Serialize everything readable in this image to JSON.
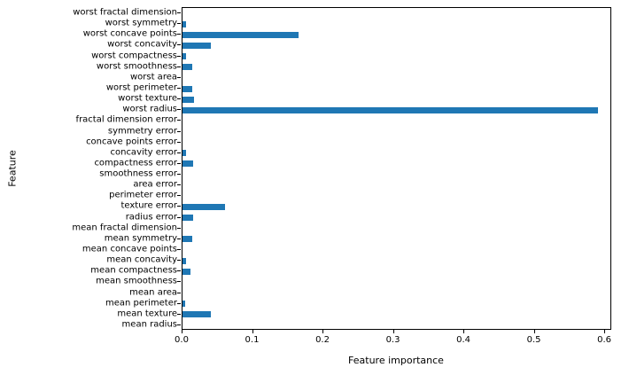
{
  "chart_data": {
    "type": "bar",
    "orientation": "horizontal",
    "title": "",
    "xlabel": "Feature importance",
    "ylabel": "Feature",
    "bar_color": "#1f77b4",
    "grid": false,
    "legend": false,
    "xlim": [
      0,
      0.61
    ],
    "xticks": [
      0.0,
      0.1,
      0.2,
      0.3,
      0.4,
      0.5,
      0.6
    ],
    "categories_top_to_bottom": [
      "worst fractal dimension",
      "worst symmetry",
      "worst concave points",
      "worst concavity",
      "worst compactness",
      "worst smoothness",
      "worst area",
      "worst perimeter",
      "worst texture",
      "worst radius",
      "fractal dimension error",
      "symmetry error",
      "concave points error",
      "concavity error",
      "compactness error",
      "smoothness error",
      "area error",
      "perimeter error",
      "texture error",
      "radius error",
      "mean fractal dimension",
      "mean symmetry",
      "mean concave points",
      "mean concavity",
      "mean compactness",
      "mean smoothness",
      "mean area",
      "mean perimeter",
      "mean texture",
      "mean radius"
    ],
    "values_top_to_bottom": [
      0.0,
      0.005,
      0.165,
      0.04,
      0.005,
      0.014,
      0.0,
      0.014,
      0.016,
      0.59,
      0.0,
      0.0,
      0.0,
      0.005,
      0.015,
      0.0,
      0.0,
      0.0,
      0.06,
      0.015,
      0.0,
      0.014,
      0.0,
      0.005,
      0.011,
      0.0,
      0.0,
      0.004,
      0.04,
      0.0
    ]
  }
}
